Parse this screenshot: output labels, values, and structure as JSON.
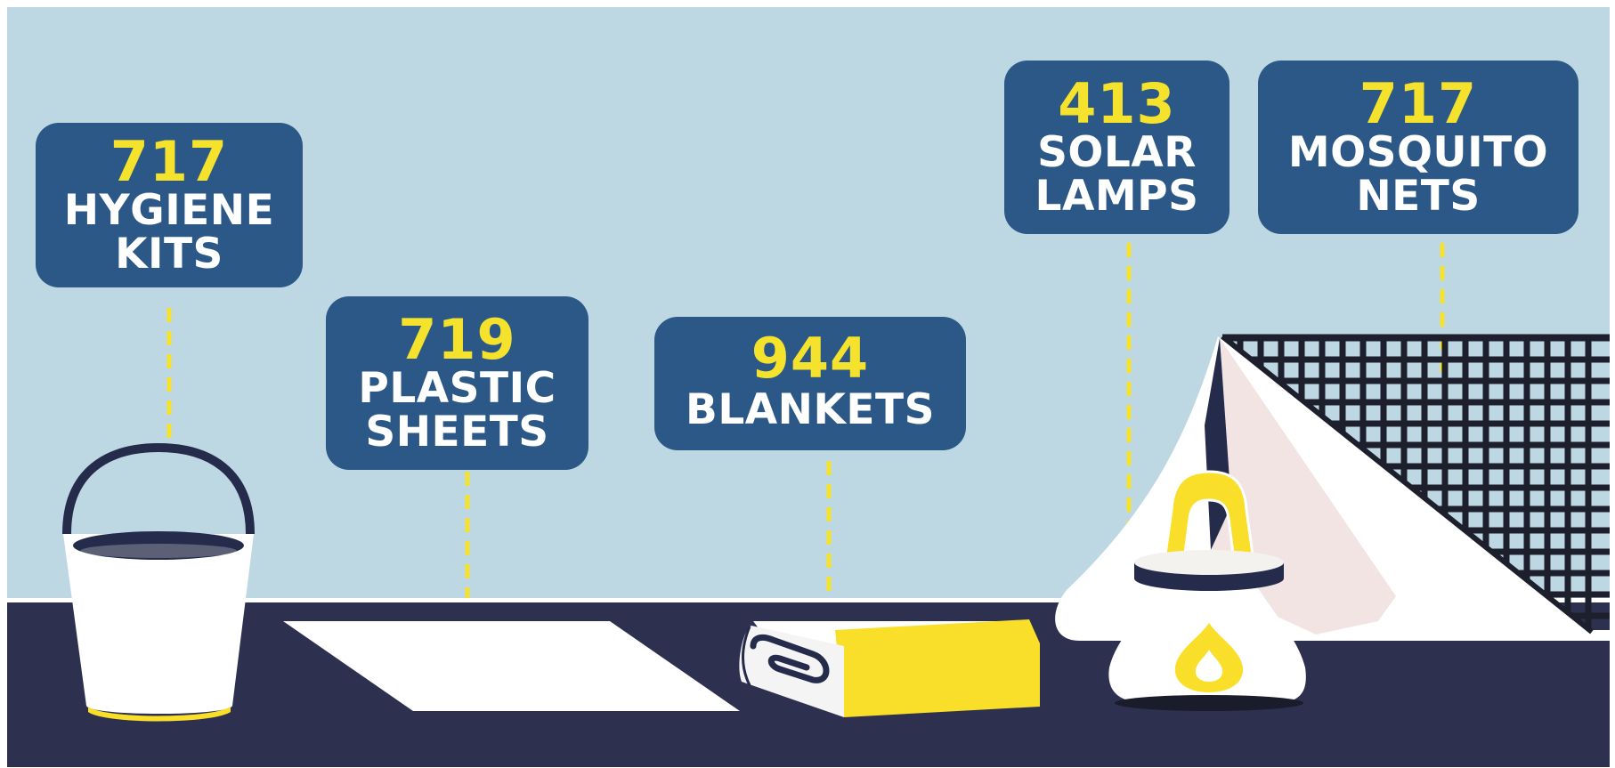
{
  "colors": {
    "sky": "#bed8e3",
    "floor": "#2e3050",
    "label_bg": "#2b5886",
    "number": "#f5e22c",
    "text": "#ffffff",
    "yellow": "#f9df2a",
    "navy": "#252b4a"
  },
  "items": [
    {
      "icon": "bucket-icon",
      "count": "717",
      "name_line1": "HYGIENE",
      "name_line2": "KITS"
    },
    {
      "icon": "plastic-sheet-icon",
      "count": "719",
      "name_line1": "PLASTIC",
      "name_line2": "SHEETS"
    },
    {
      "icon": "blanket-icon",
      "count": "944",
      "name_line1": "BLANKETS",
      "name_line2": ""
    },
    {
      "icon": "solar-lamp-icon",
      "count": "413",
      "name_line1": "SOLAR",
      "name_line2": "LAMPS"
    },
    {
      "icon": "mosquito-net-icon",
      "count": "717",
      "name_line1": "MOSQUITO",
      "name_line2": "NETS"
    }
  ]
}
